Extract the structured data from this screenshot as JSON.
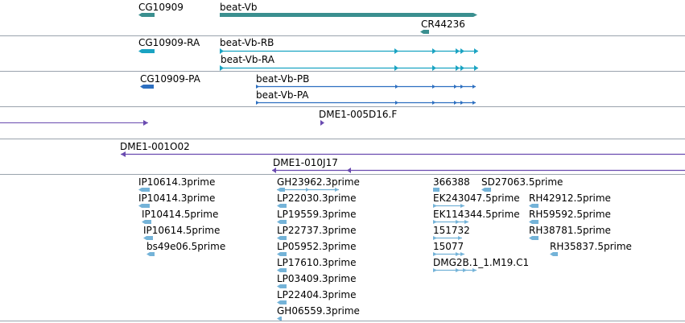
{
  "colors": {
    "gene": "#3a8f8f",
    "mrna": "#1aa3c2",
    "protein": "#2d6fc0",
    "clone_end": "#6a4bb0",
    "est": "#74b3d8",
    "divider": "#9aa3ad"
  },
  "tracks": {
    "gene": {
      "labels": [
        "CG10909",
        "beat-Vb",
        "CR44236"
      ]
    },
    "mrna": {
      "labels": [
        "CG10909-RA",
        "beat-Vb-RB",
        "beat-Vb-RA"
      ]
    },
    "protein": {
      "labels": [
        "CG10909-PA",
        "beat-Vb-PB",
        "beat-Vb-PA"
      ]
    },
    "clone_end_1": {
      "labels": [
        "DME1-005D16.F"
      ]
    },
    "clone_end_2": {
      "labels": [
        "DME1-001O02",
        "DME1-010J17"
      ]
    },
    "est": {
      "labels": [
        "IP10614.3prime",
        "IP10414.3prime",
        "IP10414.5prime",
        "IP10614.5prime",
        "bs49e06.5prime",
        "GH23962.3prime",
        "LP22030.3prime",
        "LP19559.3prime",
        "LP22737.3prime",
        "LP05952.3prime",
        "LP17610.3prime",
        "LP03409.3prime",
        "LP22404.3prime",
        "GH06559.3prime",
        "366388",
        "EK243047.5prime",
        "EK114344.5prime",
        "151732",
        "15077",
        "DMG2B.1_1.M19.C1",
        "SD27063.5prime",
        "RH42912.5prime",
        "RH59592.5prime",
        "RH38781.5prime",
        "RH35837.5prime"
      ]
    }
  }
}
